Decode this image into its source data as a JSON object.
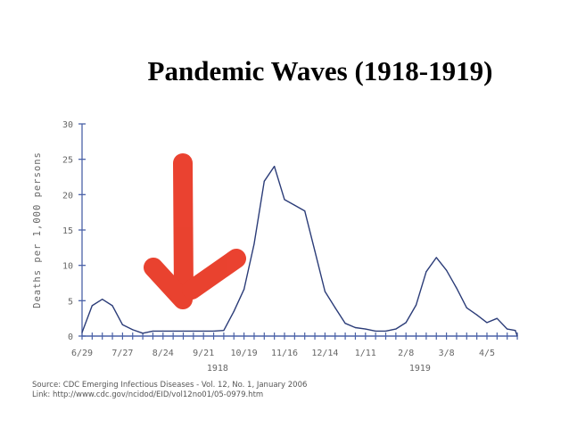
{
  "chart_data": {
    "type": "line",
    "title": "Pandemic Waves (1918-1919)",
    "xlabel": "",
    "ylabel": "Deaths per 1,000 persons",
    "ylim": [
      0,
      30
    ],
    "yticks": [
      0,
      5,
      10,
      15,
      20,
      25,
      30
    ],
    "x_unit": "week index from 6/29/1918",
    "xlim": [
      0,
      43
    ],
    "tick_labels": [
      {
        "week": 0,
        "label": "6/29"
      },
      {
        "week": 4,
        "label": "7/27"
      },
      {
        "week": 8,
        "label": "8/24"
      },
      {
        "week": 12,
        "label": "9/21"
      },
      {
        "week": 16,
        "label": "10/19"
      },
      {
        "week": 20,
        "label": "11/16"
      },
      {
        "week": 24,
        "label": "12/14"
      },
      {
        "week": 28,
        "label": "1/11"
      },
      {
        "week": 32,
        "label": "2/8"
      },
      {
        "week": 36,
        "label": "3/8"
      },
      {
        "week": 40,
        "label": "4/5"
      }
    ],
    "year_labels": [
      {
        "week": 14,
        "label": "1918"
      },
      {
        "week": 34,
        "label": "1919"
      }
    ],
    "series": [
      {
        "name": "Deaths per 1,000 persons",
        "x": [
          0,
          1,
          2,
          3,
          4,
          5,
          6,
          7,
          8,
          9,
          10,
          11,
          12,
          13,
          14,
          15,
          16,
          17,
          18,
          19,
          20,
          21,
          22,
          23,
          24,
          25,
          26,
          27,
          28,
          29,
          30,
          31,
          32,
          33,
          34,
          35,
          36,
          37,
          38,
          39,
          40,
          41,
          42,
          42.8,
          43
        ],
        "values": [
          0.5,
          4.3,
          5.2,
          4.3,
          1.6,
          0.9,
          0.4,
          0.7,
          0.7,
          0.7,
          0.7,
          0.7,
          0.7,
          0.7,
          0.8,
          3.5,
          6.6,
          13,
          21.9,
          24,
          19.3,
          18.5,
          17.7,
          12,
          6.3,
          4,
          1.8,
          1.2,
          1.0,
          0.7,
          0.7,
          1.0,
          1.9,
          4.4,
          9.1,
          11.1,
          9.3,
          6.8,
          4.0,
          3.0,
          1.9,
          2.5,
          1.0,
          0.8,
          0
        ]
      }
    ],
    "annotation": "red hand-drawn down arrow",
    "colors": {
      "line": "#2b3c78",
      "axis": "#4b62a8",
      "arrow": "#e8321e",
      "text": "#666666"
    }
  },
  "source": {
    "line1": "Source: CDC Emerging Infectious Diseases - Vol. 12, No. 1, January 2006",
    "line2": "Link: http://www.cdc.gov/ncidod/EID/vol12no01/05-0979.htm"
  }
}
